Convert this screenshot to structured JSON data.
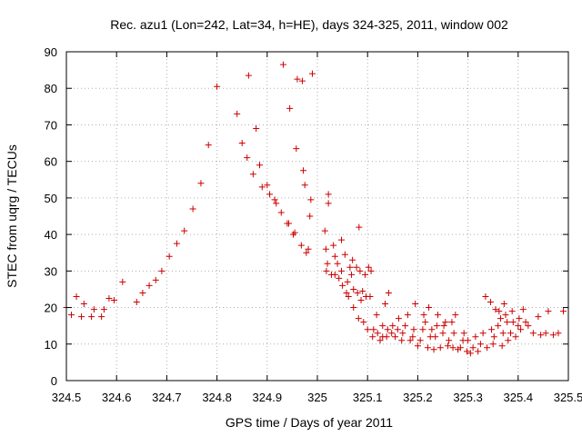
{
  "chart_data": {
    "type": "scatter",
    "title": "Rec. azu1 (Lon=242, Lat=34, h=HE), days 324-325, 2011, window 002",
    "xlabel": "GPS time / Days of year 2011",
    "ylabel": "STEC from uqrg / TECUs",
    "xlim": [
      324.5,
      325.5
    ],
    "ylim": [
      0,
      90
    ],
    "xticks": [
      "324.5",
      "324.6",
      "324.7",
      "324.8",
      "324.9",
      "325",
      "325.1",
      "325.2",
      "325.3",
      "325.4",
      "325.5"
    ],
    "yticks": [
      "0",
      "10",
      "20",
      "30",
      "40",
      "50",
      "60",
      "70",
      "80",
      "90"
    ],
    "grid": true,
    "legend": "none",
    "marker": "+",
    "color": "#cc0000",
    "points": [
      [
        324.5,
        20
      ],
      [
        324.51,
        18
      ],
      [
        324.52,
        23
      ],
      [
        324.53,
        17.5
      ],
      [
        324.535,
        21
      ],
      [
        324.55,
        17.5
      ],
      [
        324.555,
        19.5
      ],
      [
        324.57,
        17.5
      ],
      [
        324.575,
        19.5
      ],
      [
        324.585,
        22.5
      ],
      [
        324.595,
        22
      ],
      [
        324.612,
        27
      ],
      [
        324.64,
        21.5
      ],
      [
        324.652,
        24
      ],
      [
        324.665,
        26
      ],
      [
        324.678,
        27.5
      ],
      [
        324.69,
        30
      ],
      [
        324.705,
        34
      ],
      [
        324.72,
        37.5
      ],
      [
        324.735,
        41
      ],
      [
        324.752,
        47
      ],
      [
        324.768,
        54
      ],
      [
        324.783,
        64.5
      ],
      [
        324.8,
        80.5
      ],
      [
        324.84,
        73
      ],
      [
        324.85,
        65
      ],
      [
        324.86,
        61
      ],
      [
        324.863,
        83.5
      ],
      [
        324.872,
        56.5
      ],
      [
        324.878,
        69
      ],
      [
        324.885,
        59
      ],
      [
        324.89,
        53
      ],
      [
        324.9,
        53.5
      ],
      [
        324.905,
        51
      ],
      [
        324.915,
        49.5
      ],
      [
        324.918,
        48.5
      ],
      [
        324.928,
        46
      ],
      [
        324.932,
        86.5
      ],
      [
        324.94,
        43
      ],
      [
        324.943,
        43
      ],
      [
        324.945,
        74.5
      ],
      [
        324.952,
        40
      ],
      [
        324.955,
        40.5
      ],
      [
        324.958,
        63.5
      ],
      [
        324.96,
        82.5
      ],
      [
        324.968,
        37
      ],
      [
        324.97,
        82
      ],
      [
        324.972,
        57.5
      ],
      [
        324.975,
        53.5
      ],
      [
        324.978,
        35
      ],
      [
        324.982,
        36
      ],
      [
        324.985,
        45
      ],
      [
        324.987,
        49.5
      ],
      [
        324.99,
        84
      ],
      [
        325.015,
        41
      ],
      [
        325.017,
        36
      ],
      [
        325.018,
        30
      ],
      [
        325.02,
        32
      ],
      [
        325.022,
        48.5
      ],
      [
        325.022,
        51
      ],
      [
        325.028,
        29
      ],
      [
        325.032,
        37
      ],
      [
        325.035,
        34
      ],
      [
        325.035,
        29
      ],
      [
        325.04,
        32
      ],
      [
        325.043,
        28
      ],
      [
        325.048,
        38.5
      ],
      [
        325.048,
        30
      ],
      [
        325.05,
        26
      ],
      [
        325.055,
        34.5
      ],
      [
        325.058,
        24
      ],
      [
        325.06,
        27
      ],
      [
        325.062,
        23
      ],
      [
        325.065,
        31
      ],
      [
        325.068,
        29
      ],
      [
        325.07,
        33
      ],
      [
        325.072,
        25
      ],
      [
        325.072,
        20
      ],
      [
        325.078,
        31
      ],
      [
        325.08,
        24
      ],
      [
        325.082,
        17
      ],
      [
        325.083,
        42
      ],
      [
        325.085,
        30
      ],
      [
        325.087,
        22
      ],
      [
        325.09,
        24.5
      ],
      [
        325.092,
        16
      ],
      [
        325.095,
        29
      ],
      [
        325.097,
        23
      ],
      [
        325.1,
        14
      ],
      [
        325.102,
        31
      ],
      [
        325.105,
        23
      ],
      [
        325.107,
        30
      ],
      [
        325.11,
        12
      ],
      [
        325.112,
        14
      ],
      [
        325.118,
        18
      ],
      [
        325.12,
        13
      ],
      [
        325.125,
        11
      ],
      [
        325.13,
        12
      ],
      [
        325.13,
        15
      ],
      [
        325.135,
        21
      ],
      [
        325.138,
        12
      ],
      [
        325.14,
        14
      ],
      [
        325.142,
        24
      ],
      [
        325.148,
        13
      ],
      [
        325.15,
        15
      ],
      [
        325.155,
        12
      ],
      [
        325.16,
        14
      ],
      [
        325.162,
        17
      ],
      [
        325.168,
        11
      ],
      [
        325.17,
        13
      ],
      [
        325.175,
        15
      ],
      [
        325.18,
        18
      ],
      [
        325.185,
        11
      ],
      [
        325.19,
        12
      ],
      [
        325.192,
        14
      ],
      [
        325.195,
        21
      ],
      [
        325.2,
        9.5
      ],
      [
        325.205,
        11
      ],
      [
        325.21,
        14
      ],
      [
        325.212,
        18
      ],
      [
        325.215,
        16
      ],
      [
        325.22,
        9
      ],
      [
        325.222,
        20
      ],
      [
        325.225,
        12
      ],
      [
        325.228,
        14
      ],
      [
        325.232,
        8.5
      ],
      [
        325.235,
        12
      ],
      [
        325.238,
        15
      ],
      [
        325.24,
        18
      ],
      [
        325.245,
        9
      ],
      [
        325.25,
        13
      ],
      [
        325.252,
        15
      ],
      [
        325.255,
        16
      ],
      [
        325.26,
        9.5
      ],
      [
        325.262,
        11
      ],
      [
        325.268,
        16
      ],
      [
        325.27,
        9
      ],
      [
        325.272,
        13
      ],
      [
        325.275,
        18
      ],
      [
        325.28,
        8.5
      ],
      [
        325.285,
        9
      ],
      [
        325.29,
        11
      ],
      [
        325.292,
        13
      ],
      [
        325.298,
        8
      ],
      [
        325.3,
        11
      ],
      [
        325.305,
        7.5
      ],
      [
        325.31,
        9
      ],
      [
        325.315,
        12
      ],
      [
        325.32,
        8
      ],
      [
        325.325,
        10
      ],
      [
        325.33,
        13
      ],
      [
        325.335,
        23
      ],
      [
        325.338,
        9
      ],
      [
        325.345,
        21.5
      ],
      [
        325.347,
        14
      ],
      [
        325.35,
        10
      ],
      [
        325.352,
        12
      ],
      [
        325.355,
        19.5
      ],
      [
        325.36,
        15
      ],
      [
        325.362,
        19
      ],
      [
        325.365,
        17
      ],
      [
        325.368,
        9.5
      ],
      [
        325.37,
        13
      ],
      [
        325.372,
        21
      ],
      [
        325.375,
        18
      ],
      [
        325.378,
        16
      ],
      [
        325.38,
        11
      ],
      [
        325.385,
        13
      ],
      [
        325.388,
        19
      ],
      [
        325.39,
        16
      ],
      [
        325.395,
        12
      ],
      [
        325.4,
        15
      ],
      [
        325.402,
        17
      ],
      [
        325.405,
        14
      ],
      [
        325.41,
        19.5
      ],
      [
        325.415,
        16
      ],
      [
        325.42,
        15
      ],
      [
        325.43,
        13
      ],
      [
        325.44,
        17.5
      ],
      [
        325.445,
        12.5
      ],
      [
        325.455,
        13
      ],
      [
        325.46,
        19
      ],
      [
        325.47,
        12.5
      ],
      [
        325.48,
        13
      ],
      [
        325.49,
        19
      ]
    ]
  }
}
